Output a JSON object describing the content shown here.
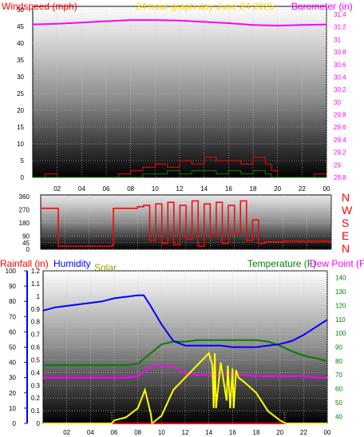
{
  "colors": {
    "windspeed": "#ff0000",
    "gust": "#008000",
    "barometer": "#ff00ff",
    "direction": "#ff0000",
    "rainfall": "#ff0000",
    "humidity": "#0000ff",
    "solar": "#ffff00",
    "temperature": "#008000",
    "dewpoint": "#ff00ff",
    "title_date": "#ffd700"
  },
  "chart_data": [
    {
      "type": "line",
      "title": "24 hour graph day   June 24 2025",
      "ylabel_left": "Windspeed (mph)",
      "ylabel_right": "Barometer (in)",
      "ylim_left": [
        0,
        50
      ],
      "ylim_right": [
        28.8,
        31.4
      ],
      "yticks_left": [
        "0",
        "5",
        "10",
        "15",
        "20",
        "25",
        "30",
        "35",
        "40",
        "45",
        "50"
      ],
      "yticks_right": [
        "28.8",
        "29",
        "29.2",
        "29.4",
        "29.6",
        "29.8",
        "30",
        "30.2",
        "30.4",
        "30.6",
        "30.8",
        "31",
        "31.2",
        "31.4"
      ],
      "xticks": [
        "02",
        "04",
        "06",
        "08",
        "10",
        "12",
        "14",
        "16",
        "18",
        "20",
        "22",
        "00"
      ],
      "grid": true,
      "series": [
        {
          "name": "Barometer",
          "axis": "right",
          "x": [
            0,
            2,
            4,
            6,
            8,
            10,
            12,
            14,
            16,
            18,
            20,
            22,
            24
          ],
          "values": [
            31.24,
            31.25,
            31.27,
            31.29,
            31.31,
            31.31,
            31.3,
            31.28,
            31.26,
            31.23,
            31.22,
            31.23,
            31.24
          ]
        },
        {
          "name": "Windspeed",
          "axis": "left",
          "x": [
            0,
            1,
            2,
            4,
            6,
            7,
            8,
            9,
            10,
            11,
            12,
            13,
            14,
            15,
            16,
            17,
            18,
            19,
            19.5,
            20,
            22,
            23,
            24
          ],
          "values": [
            0,
            1,
            0,
            0,
            0,
            1,
            2,
            3,
            4,
            3,
            5,
            4,
            6,
            5,
            5,
            4,
            6,
            4,
            2,
            0,
            0,
            1,
            0
          ]
        },
        {
          "name": "Gust",
          "axis": "left",
          "x": [
            0,
            8,
            9,
            10,
            11,
            12,
            13,
            14,
            15,
            16,
            17,
            18,
            19,
            19.5,
            20,
            24
          ],
          "values": [
            0,
            0,
            1,
            1,
            2,
            1,
            2,
            2,
            1,
            2,
            1,
            2,
            1,
            0,
            0,
            0
          ]
        }
      ]
    },
    {
      "type": "line",
      "ylabel_right": "N W S E N",
      "direction_labels": [
        "N",
        "W",
        "S",
        "E",
        "N"
      ],
      "ylim": [
        0,
        360
      ],
      "yticks": [
        "0",
        "45",
        "90",
        "180",
        "270",
        "360"
      ],
      "grid": true,
      "series": [
        {
          "name": "Wind direction",
          "x": [
            0,
            1.4,
            1.45,
            3,
            5.9,
            6.0,
            8.0,
            8.5,
            9,
            9.5,
            10,
            10.5,
            11,
            11.5,
            12,
            12.5,
            13,
            13.5,
            14,
            14.5,
            15,
            15.5,
            16,
            16.5,
            17,
            17.5,
            18,
            18.5,
            19,
            20,
            24
          ],
          "values": [
            280,
            280,
            20,
            20,
            30,
            280,
            290,
            300,
            60,
            310,
            40,
            320,
            30,
            300,
            70,
            330,
            20,
            310,
            90,
            320,
            40,
            300,
            110,
            330,
            60,
            200,
            40,
            50,
            50,
            55,
            55
          ]
        }
      ]
    },
    {
      "type": "line",
      "ylabel_left_1": "Rainfall (in)",
      "ylabel_left_2": "Humidity",
      "ylabel_left_3": "Solar",
      "ylabel_right_1": "Temperature (F)",
      "ylabel_right_2": "Dew Point (F)",
      "ylim_rain": [
        0,
        1.2
      ],
      "ylim_humidity": [
        0,
        100
      ],
      "ylim_temp": [
        35,
        145
      ],
      "yticks_rain": [
        "0",
        "0.1",
        "0.2",
        "0.3",
        "0.4",
        "0.5",
        "0.6",
        "0.7",
        "0.8",
        "0.9",
        "1",
        "1.1",
        "1.2"
      ],
      "yticks_humidity": [
        "0",
        "10",
        "20",
        "30",
        "40",
        "50",
        "60",
        "70",
        "80",
        "90",
        "100"
      ],
      "yticks_temp": [
        "40",
        "50",
        "60",
        "70",
        "80",
        "90",
        "100",
        "110",
        "120",
        "130",
        "140"
      ],
      "xticks": [
        "02",
        "04",
        "06",
        "08",
        "10",
        "12",
        "14",
        "16",
        "18",
        "20",
        "22",
        "00"
      ],
      "grid": true,
      "series": [
        {
          "name": "Humidity",
          "axis": "humidity",
          "x": [
            0,
            1,
            2,
            3,
            4,
            5,
            6,
            7,
            8,
            8.5,
            9,
            10,
            11,
            12,
            13,
            14,
            15,
            16,
            17,
            18,
            19,
            20,
            21,
            22,
            23,
            24
          ],
          "values": [
            74,
            76,
            77,
            78,
            79,
            80,
            82,
            83,
            84,
            84,
            78,
            65,
            54,
            51,
            51,
            51,
            51,
            50,
            50,
            50,
            51,
            52,
            54,
            58,
            63,
            68
          ]
        },
        {
          "name": "Temperature",
          "axis": "temp",
          "x": [
            0,
            2,
            4,
            6,
            7,
            8,
            9,
            10,
            11,
            12,
            13,
            14,
            15,
            16,
            17,
            18,
            19,
            20,
            21,
            22,
            23,
            24
          ],
          "values": [
            77,
            77,
            77,
            77,
            77,
            78,
            85,
            92,
            94,
            94,
            95,
            95,
            95,
            95,
            95,
            95,
            94,
            91,
            87,
            84,
            82,
            80
          ]
        },
        {
          "name": "Dew Point",
          "axis": "temp",
          "x": [
            0,
            2,
            4,
            6,
            7,
            8,
            9,
            10,
            11,
            12,
            13,
            14,
            15,
            16,
            17,
            18,
            19,
            20,
            21,
            22,
            23,
            24
          ],
          "values": [
            68,
            68,
            68,
            68,
            68,
            69,
            75,
            77,
            76,
            71,
            70,
            70,
            70,
            70,
            70,
            69,
            69,
            69,
            69,
            69,
            68,
            68
          ]
        },
        {
          "name": "Solar",
          "axis": "solar_rel",
          "x": [
            0,
            5.8,
            6.0,
            7,
            8,
            8.6,
            9.1,
            9.2,
            10,
            11,
            12,
            13,
            14,
            14.3,
            14.4,
            14.5,
            14.6,
            15,
            15.5,
            15.6,
            15.8,
            16,
            16.1,
            16.3,
            16.5,
            17,
            18,
            19,
            20,
            20.5,
            24
          ],
          "values": [
            0,
            0,
            0.02,
            0.04,
            0.1,
            0.22,
            0.06,
            0,
            0.05,
            0.22,
            0.3,
            0.38,
            0.46,
            0.38,
            0.1,
            0.46,
            0.1,
            0.4,
            0.15,
            0.38,
            0.1,
            0.36,
            0.1,
            0.35,
            0.3,
            0.27,
            0.2,
            0.08,
            0.02,
            0,
            0
          ]
        },
        {
          "name": "Rainfall",
          "axis": "rain",
          "x": [
            0,
            24
          ],
          "values": [
            0,
            0
          ]
        }
      ]
    }
  ]
}
